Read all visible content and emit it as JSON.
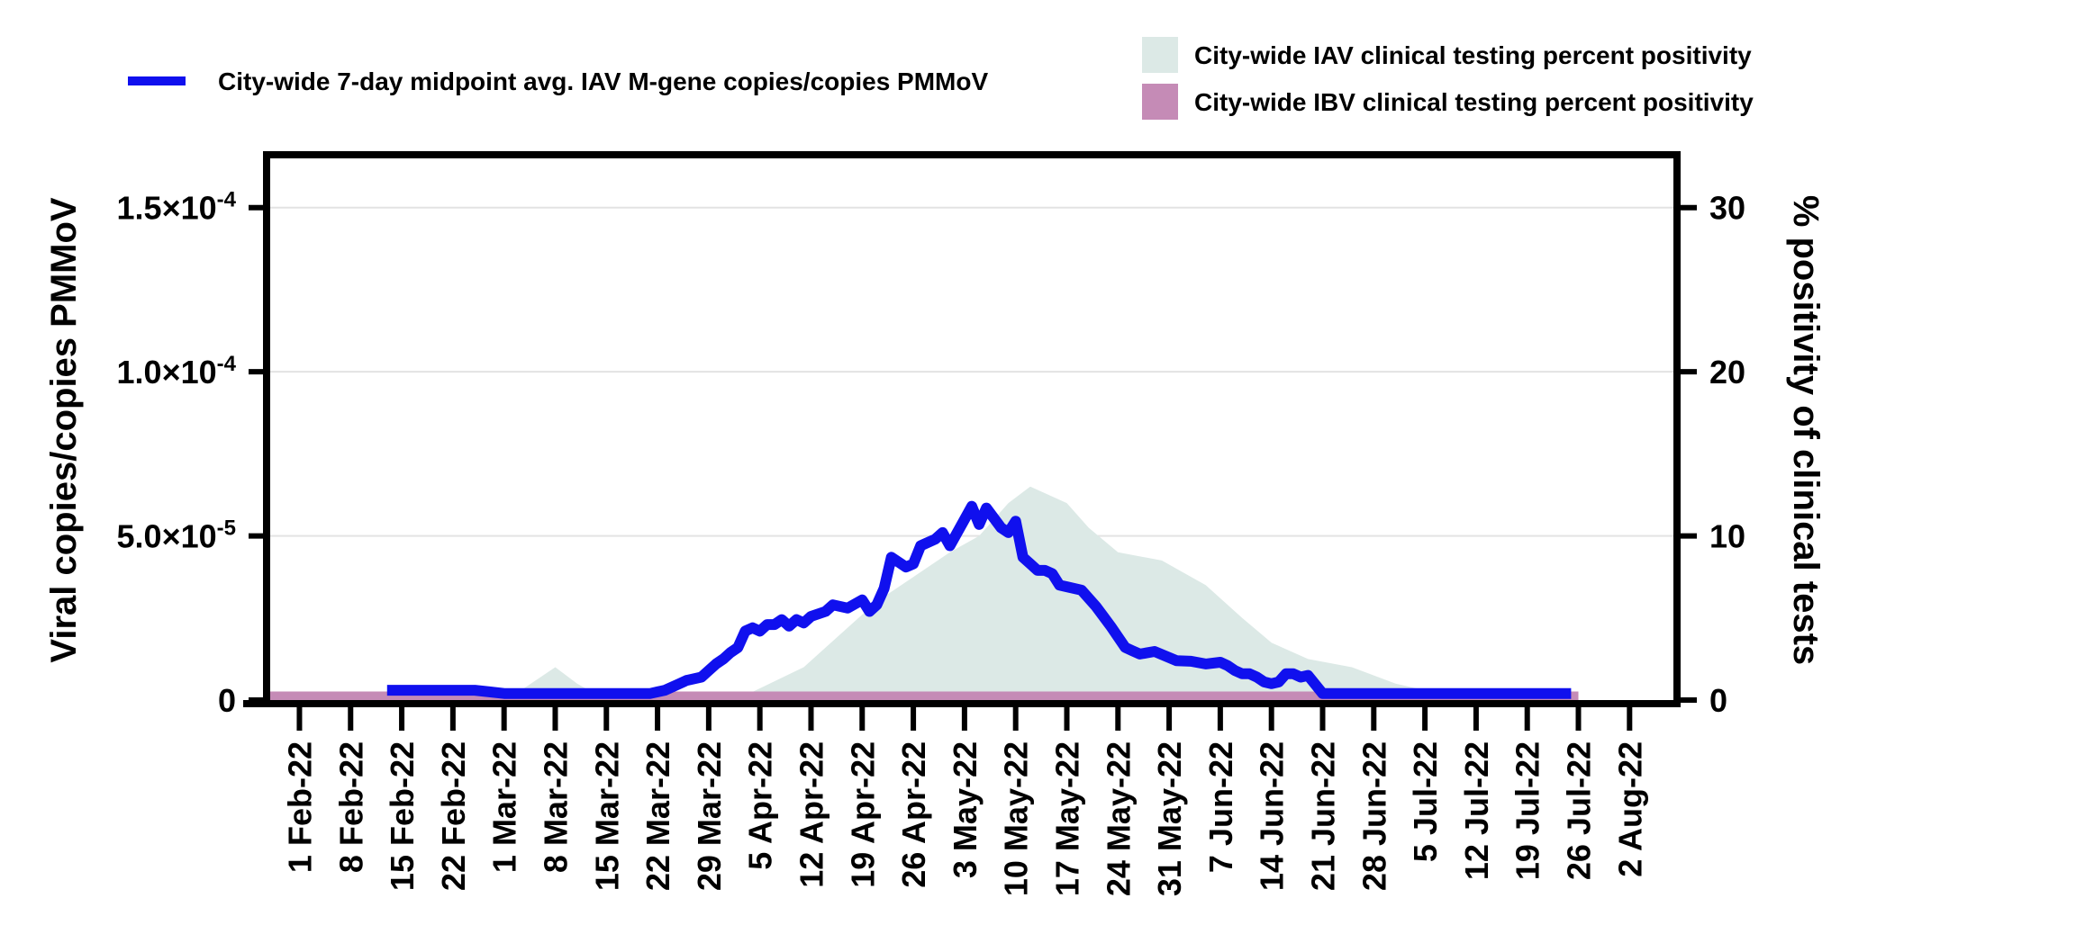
{
  "chart_data": {
    "type": "line+area",
    "title": "",
    "legend": {
      "placement": "top",
      "entries": [
        {
          "label": "City-wide 7-day midpoint avg. IAV M-gene copies/copies PMMoV",
          "kind": "line",
          "color": "#1010ee"
        },
        {
          "label": "City-wide IAV clinical testing percent positivity",
          "kind": "area",
          "color": "#dce9e6"
        },
        {
          "label": "City-wide IBV clinical testing percent positivity",
          "kind": "area",
          "color": "#c58bb6"
        }
      ]
    },
    "y_left": {
      "label": "Viral copies/copies PMMoV",
      "range": [
        0,
        0.000165
      ],
      "ticks": [
        {
          "value": 0,
          "mantissa": "0",
          "exp": ""
        },
        {
          "value": 5e-05,
          "mantissa": "5.0×10",
          "exp": "-5"
        },
        {
          "value": 0.0001,
          "mantissa": "1.0×10",
          "exp": "-4"
        },
        {
          "value": 0.00015,
          "mantissa": "1.5×10",
          "exp": "-4"
        }
      ]
    },
    "y_right": {
      "label": "% positivity of clinical tests",
      "range": [
        0,
        33
      ],
      "ticks": [
        "0",
        "10",
        "20",
        "30"
      ]
    },
    "x_axis": {
      "label": "",
      "domain_days": [
        -4,
        188
      ],
      "ticks": [
        {
          "label": "1 Feb-22",
          "day": 0
        },
        {
          "label": "8 Feb-22",
          "day": 7
        },
        {
          "label": "15 Feb-22",
          "day": 14
        },
        {
          "label": "22 Feb-22",
          "day": 21
        },
        {
          "label": "1 Mar-22",
          "day": 28
        },
        {
          "label": "8 Mar-22",
          "day": 35
        },
        {
          "label": "15 Mar-22",
          "day": 42
        },
        {
          "label": "22 Mar-22",
          "day": 49
        },
        {
          "label": "29 Mar-22",
          "day": 56
        },
        {
          "label": "5 Apr-22",
          "day": 63
        },
        {
          "label": "12 Apr-22",
          "day": 70
        },
        {
          "label": "19 Apr-22",
          "day": 77
        },
        {
          "label": "26 Apr-22",
          "day": 84
        },
        {
          "label": "3 May-22",
          "day": 91
        },
        {
          "label": "10 May-22",
          "day": 98
        },
        {
          "label": "17 May-22",
          "day": 105
        },
        {
          "label": "24 May-22",
          "day": 112
        },
        {
          "label": "31 May-22",
          "day": 119
        },
        {
          "label": "7 Jun-22",
          "day": 126
        },
        {
          "label": "14 Jun-22",
          "day": 133
        },
        {
          "label": "21 Jun-22",
          "day": 140
        },
        {
          "label": "28 Jun-22",
          "day": 147
        },
        {
          "label": "5 Jul-22",
          "day": 154
        },
        {
          "label": "12 Jul-22",
          "day": 161
        },
        {
          "label": "19 Jul-22",
          "day": 168
        },
        {
          "label": "26 Jul-22",
          "day": 175
        },
        {
          "label": "2 Aug-22",
          "day": 182
        }
      ]
    },
    "gridlines": "horizontal",
    "series": [
      {
        "name": "City-wide 7-day midpoint avg. IAV M-gene copies/copies PMMoV",
        "axis": "left",
        "type": "line",
        "color": "#1010ee",
        "x_days": [
          12,
          14,
          16,
          18,
          20,
          22,
          24,
          26,
          28,
          30,
          32,
          34,
          36,
          38,
          40,
          42,
          44,
          46,
          48,
          49,
          50,
          52,
          53,
          55,
          56,
          57,
          58,
          59,
          60,
          61,
          62,
          63,
          64,
          65,
          66,
          67,
          68,
          69,
          70,
          72,
          73,
          75,
          77,
          78,
          79,
          80,
          81,
          82,
          83,
          84,
          85,
          87,
          88,
          89,
          91,
          92,
          93,
          94,
          95,
          96,
          97,
          98,
          99,
          100,
          101,
          102,
          103,
          104,
          105,
          107,
          109,
          110,
          111,
          113,
          114,
          115,
          117,
          120,
          122,
          124,
          126,
          127,
          128,
          129,
          130,
          131,
          132,
          133,
          134,
          135,
          136,
          137,
          138,
          140,
          145,
          150,
          155,
          160,
          165,
          170,
          174
        ],
        "values": [
          3e-06,
          3e-06,
          3e-06,
          3e-06,
          3e-06,
          3e-06,
          3e-06,
          2.5e-06,
          2e-06,
          2e-06,
          2e-06,
          2e-06,
          2e-06,
          2e-06,
          2e-06,
          2e-06,
          2e-06,
          2e-06,
          2e-06,
          2.5e-06,
          3e-06,
          5e-06,
          6e-06,
          7e-06,
          9e-06,
          1.1e-05,
          1.25e-05,
          1.45e-05,
          1.6e-05,
          2.1e-05,
          2.2e-05,
          2.1e-05,
          2.3e-05,
          2.3e-05,
          2.45e-05,
          2.25e-05,
          2.45e-05,
          2.35e-05,
          2.55e-05,
          2.7e-05,
          2.9e-05,
          2.8e-05,
          3.05e-05,
          2.7e-05,
          2.9e-05,
          3.4e-05,
          4.35e-05,
          4.2e-05,
          4.05e-05,
          4.15e-05,
          4.7e-05,
          4.9e-05,
          5.1e-05,
          4.7e-05,
          5.5e-05,
          5.9e-05,
          5.35e-05,
          5.85e-05,
          5.55e-05,
          5.25e-05,
          5.1e-05,
          5.45e-05,
          4.35e-05,
          4.15e-05,
          3.95e-05,
          3.95e-05,
          3.85e-05,
          3.5e-05,
          3.45e-05,
          3.35e-05,
          2.85e-05,
          2.55e-05,
          2.25e-05,
          1.6e-05,
          1.5e-05,
          1.4e-05,
          1.48e-05,
          1.2e-05,
          1.18e-05,
          1.1e-05,
          1.15e-05,
          1.05e-05,
          9e-06,
          8e-06,
          8e-06,
          7e-06,
          5.5e-06,
          5e-06,
          5.5e-06,
          8e-06,
          8e-06,
          7e-06,
          7.5e-06,
          2e-06,
          2e-06,
          2e-06,
          2e-06,
          2e-06,
          2e-06,
          2e-06,
          2e-06
        ]
      },
      {
        "name": "City-wide IAV clinical testing percent positivity",
        "axis": "right",
        "type": "area",
        "color": "#dce9e6",
        "x_days": [
          -4,
          26,
          30,
          35,
          38,
          42,
          55,
          59,
          62,
          69,
          74,
          79,
          84,
          89,
          93,
          97,
          100,
          105,
          108,
          112,
          118,
          124,
          129,
          133,
          138,
          144,
          147,
          150,
          155,
          160,
          165,
          170,
          175
        ],
        "values": [
          0,
          0,
          0.5,
          2,
          1,
          0,
          0,
          0,
          0.5,
          2,
          4,
          6,
          7.5,
          9,
          10,
          12,
          13,
          12,
          10.5,
          9,
          8.5,
          7,
          5,
          3.5,
          2.5,
          2,
          1.5,
          1,
          0.5,
          0,
          0,
          0,
          0
        ]
      },
      {
        "name": "City-wide IBV clinical testing percent positivity",
        "axis": "right",
        "type": "area",
        "color": "#c58bb6",
        "x_days": [
          -4,
          175
        ],
        "values": [
          0.3,
          0.3
        ]
      }
    ]
  }
}
